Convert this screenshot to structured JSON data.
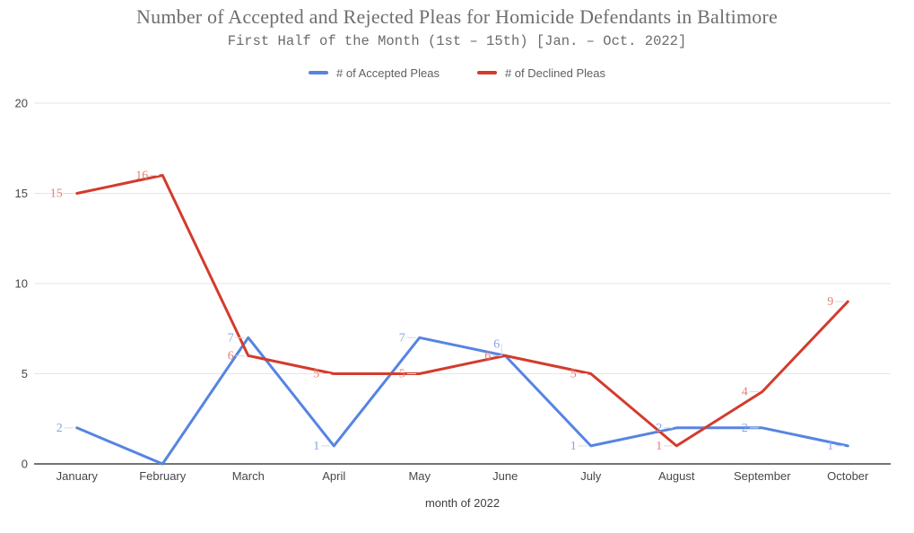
{
  "chart_data": {
    "type": "line",
    "title": "Number of Accepted and Rejected Pleas for Homicide Defendants in Baltimore",
    "subtitle": "First Half of the Month (1st – 15th) [Jan. – Oct. 2022]",
    "xlabel": "month of 2022",
    "categories": [
      "January",
      "February",
      "March",
      "April",
      "May",
      "June",
      "July",
      "August",
      "September",
      "October"
    ],
    "series": [
      {
        "name": "# of Accepted Pleas",
        "color": "#5684e3",
        "label_color": "#85a3ea",
        "values": [
          2,
          0,
          7,
          1,
          7,
          6,
          1,
          2,
          2,
          1
        ],
        "point_labels": [
          2,
          null,
          7,
          1,
          7,
          6,
          1,
          2,
          2,
          1
        ]
      },
      {
        "name": "# of Declined Pleas",
        "color": "#d33b2c",
        "label_color": "#e28177",
        "values": [
          15,
          16,
          6,
          5,
          5,
          6,
          5,
          1,
          4,
          9
        ],
        "point_labels": [
          15,
          16,
          6,
          5,
          5,
          6,
          5,
          1,
          4,
          9
        ]
      }
    ],
    "ylim": [
      0,
      20
    ],
    "yticks": [
      0,
      5,
      10,
      15,
      20
    ],
    "legend_position": "top",
    "grid": true,
    "colors": {
      "grid": "#e6e6e6",
      "baseline": "#747474",
      "label_leader": "#d9d9d9",
      "tick_text": "#45484b",
      "title_text": "#6e6e6e",
      "legend_text": "#5d5f62"
    }
  }
}
